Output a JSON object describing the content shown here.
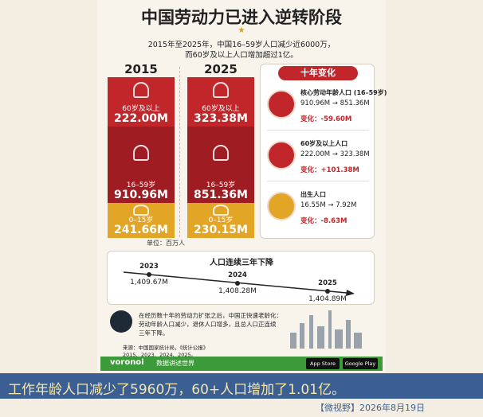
{
  "header": {
    "title": "中国劳动力已进入逆转阶段",
    "subtitle": [
      "2015年至2025年，中国16–59岁人口减少近6000万，",
      "而60岁及以上人口增加超过1亿。"
    ]
  },
  "columns": [
    {
      "year": "2015",
      "groups": [
        {
          "label": "60岁及以上",
          "value": "222.00M"
        },
        {
          "label": "16–59岁",
          "value": "910.96M"
        },
        {
          "label": "0–15岁",
          "value": "241.66M"
        }
      ]
    },
    {
      "year": "2025",
      "groups": [
        {
          "label": "60岁及以上",
          "value": "323.38M"
        },
        {
          "label": "16–59岁",
          "value": "851.36M"
        },
        {
          "label": "0–15岁",
          "value": "230.15M"
        }
      ]
    }
  ],
  "unit": "单位：百万人",
  "change_panel": {
    "title": "十年变化",
    "items": [
      {
        "label": "核心劳动年龄人口 (16–59岁)",
        "range": "910.96M → 851.36M",
        "change": "变化：-59.60M"
      },
      {
        "label": "60岁及以上人口",
        "range": "222.00M → 323.38M",
        "change": "变化：+101.38M"
      },
      {
        "label": "出生人口",
        "range": "16.55M → 7.92M",
        "change": "变化：-8.63M"
      }
    ]
  },
  "timeline": {
    "title": "人口连续三年下降",
    "points": [
      {
        "year": "2023",
        "value": "1,409.67M"
      },
      {
        "year": "2024",
        "value": "1,408.28M"
      },
      {
        "year": "2025",
        "value": "1,404.89M"
      }
    ]
  },
  "summary": [
    "在经历数十年的劳动力扩张之后，中国正快速老龄化：",
    "劳动年龄人口减少，退休人口增多，且总人口正连续",
    "三年下降。"
  ],
  "source": [
    "来源：中国国家统计局，《统计公报》",
    "2015、2023、2024、2025。"
  ],
  "footer": {
    "brand": "voronoi",
    "tagline": "数据讲述世界",
    "app_store": "App Store",
    "google_play": "Google Play"
  },
  "caption": "工作年龄人口减少了5960万，60+人口增加了1.01亿。",
  "credit": "【微视野】2026年8月19日"
}
